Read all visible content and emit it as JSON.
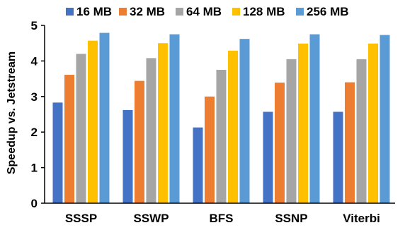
{
  "chart_data": {
    "type": "bar",
    "categories": [
      "SSSP",
      "SSWP",
      "BFS",
      "SSNP",
      "Viterbi"
    ],
    "series": [
      {
        "name": "16 MB",
        "color": "#4472C4",
        "values": [
          2.83,
          2.62,
          2.13,
          2.57,
          2.57
        ]
      },
      {
        "name": "32 MB",
        "color": "#ED7D31",
        "values": [
          3.61,
          3.44,
          3.0,
          3.39,
          3.4
        ]
      },
      {
        "name": "64 MB",
        "color": "#A5A5A5",
        "values": [
          4.2,
          4.08,
          3.75,
          4.05,
          4.05
        ]
      },
      {
        "name": "128 MB",
        "color": "#FFC000",
        "values": [
          4.57,
          4.5,
          4.29,
          4.49,
          4.49
        ]
      },
      {
        "name": "256 MB",
        "color": "#5B9BD5",
        "values": [
          4.79,
          4.75,
          4.62,
          4.75,
          4.73
        ]
      }
    ],
    "xlabel": "",
    "ylabel": "Speedup vs. Jetstream",
    "ylim": [
      0,
      5
    ],
    "yticks": [
      "0",
      "1",
      "2",
      "3",
      "4",
      "5"
    ],
    "grid": false,
    "legend": "top"
  }
}
